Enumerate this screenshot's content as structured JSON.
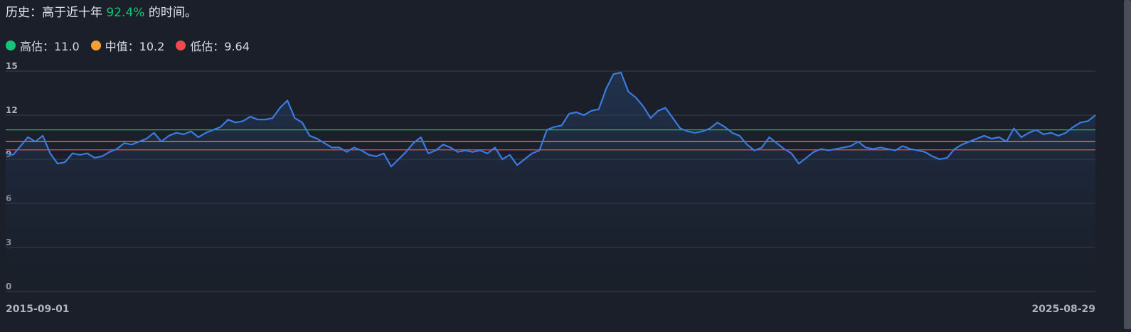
{
  "header": {
    "prefix": "历史：高于近十年",
    "percent": "92.4%",
    "suffix": "的时间。"
  },
  "legend": [
    {
      "label": "高估：11.0",
      "color": "#16c477"
    },
    {
      "label": "中值：10.2",
      "color": "#f7a02f"
    },
    {
      "label": "低估：9.64",
      "color": "#ef4b4b"
    }
  ],
  "chart_data": {
    "type": "line",
    "x_start_label": "2015-09-01",
    "x_end_label": "2025-08-29",
    "ylim": [
      0,
      15
    ],
    "yticks": [
      "0",
      "3",
      "6",
      "9",
      "12",
      "15"
    ],
    "grid": true,
    "reference_lines": [
      {
        "name": "高估",
        "value": 11.0,
        "color": "#16c477"
      },
      {
        "name": "中值",
        "value": 10.2,
        "color": "#f7a02f"
      },
      {
        "name": "低估",
        "value": 9.64,
        "color": "#ef4b4b"
      }
    ],
    "series": [
      {
        "color": "#3b7be0",
        "values": [
          9.4,
          9.3,
          9.9,
          10.5,
          10.2,
          10.6,
          9.4,
          8.7,
          8.8,
          9.4,
          9.3,
          9.4,
          9.1,
          9.2,
          9.5,
          9.7,
          10.1,
          10.0,
          10.2,
          10.4,
          10.8,
          10.2,
          10.6,
          10.8,
          10.7,
          10.9,
          10.5,
          10.8,
          11.0,
          11.2,
          11.7,
          11.5,
          11.6,
          11.9,
          11.7,
          11.7,
          11.8,
          12.5,
          13.0,
          11.8,
          11.5,
          10.6,
          10.4,
          10.1,
          9.8,
          9.8,
          9.5,
          9.8,
          9.6,
          9.3,
          9.2,
          9.4,
          8.5,
          9.0,
          9.5,
          10.1,
          10.5,
          9.4,
          9.6,
          10.0,
          9.8,
          9.5,
          9.6,
          9.5,
          9.6,
          9.4,
          9.8,
          9.0,
          9.3,
          8.6,
          9.0,
          9.4,
          9.6,
          11.0,
          11.2,
          11.3,
          12.1,
          12.2,
          12.0,
          12.3,
          12.4,
          13.8,
          14.8,
          14.9,
          13.6,
          13.2,
          12.6,
          11.8,
          12.3,
          12.5,
          11.8,
          11.1,
          10.9,
          10.8,
          10.9,
          11.1,
          11.5,
          11.2,
          10.8,
          10.6,
          10.0,
          9.6,
          9.8,
          10.5,
          10.1,
          9.7,
          9.4,
          8.7,
          9.1,
          9.5,
          9.7,
          9.6,
          9.7,
          9.8,
          9.9,
          10.2,
          9.8,
          9.7,
          9.8,
          9.7,
          9.6,
          9.9,
          9.7,
          9.6,
          9.5,
          9.2,
          9.0,
          9.1,
          9.7,
          10.0,
          10.2,
          10.4,
          10.6,
          10.4,
          10.5,
          10.2,
          11.1,
          10.5,
          10.8,
          11.0,
          10.7,
          10.8,
          10.6,
          10.8,
          11.2,
          11.5,
          11.6,
          12.0
        ]
      }
    ]
  }
}
